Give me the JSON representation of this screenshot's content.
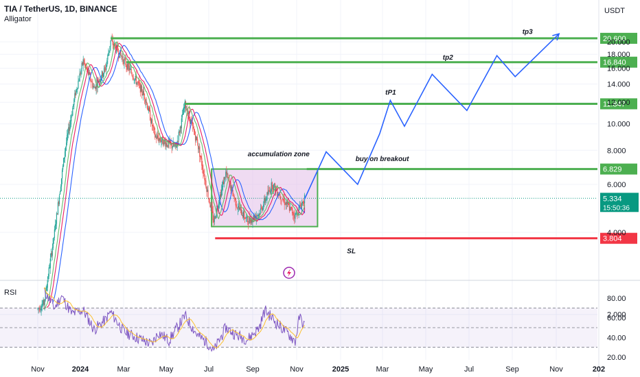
{
  "header": {
    "symbol": "TIA / TetherUS, 1D, BINANCE",
    "indicator": "Alligator",
    "currency": "USDT"
  },
  "colors": {
    "green_line": "#4caf50",
    "red_line": "#f23645",
    "projection": "#2962ff",
    "candle_up": "#26a69a",
    "candle_down": "#ef5350",
    "jaw": "#2962ff",
    "teeth": "#e91e63",
    "lips": "#66bb6a",
    "rsi_line": "#7e57c2",
    "rsi_ma": "#fbc02d",
    "zone_fill": "#e1bee7",
    "last_price": "#089981"
  },
  "chart_data": [
    {
      "type": "candlestick",
      "title": "TIA / TetherUS, 1D, BINANCE",
      "indicator": "Alligator",
      "y_scale": "log",
      "ylim": [
        1.6,
        24
      ],
      "y_ticks": [
        "2.000",
        "4.000",
        "6.000",
        "8.000",
        "10.000",
        "12.000",
        "14.000",
        "16.000",
        "18.000",
        "20.000"
      ],
      "x_ticks": [
        "Nov",
        "2024",
        "Mar",
        "May",
        "Jul",
        "Sep",
        "Nov",
        "2025",
        "Mar",
        "May",
        "Jul",
        "Sep",
        "Nov",
        "202"
      ],
      "price_path": [
        {
          "date": "2023-11-01",
          "price": 2.1
        },
        {
          "date": "2023-11-10",
          "price": 2.2
        },
        {
          "date": "2023-11-25",
          "price": 4.0
        },
        {
          "date": "2023-12-10",
          "price": 8.0
        },
        {
          "date": "2023-12-25",
          "price": 13.0
        },
        {
          "date": "2024-01-05",
          "price": 17.0
        },
        {
          "date": "2024-01-20",
          "price": 13.5
        },
        {
          "date": "2024-02-05",
          "price": 16.0
        },
        {
          "date": "2024-02-12",
          "price": 20.2
        },
        {
          "date": "2024-02-25",
          "price": 18.0
        },
        {
          "date": "2024-03-15",
          "price": 15.0
        },
        {
          "date": "2024-04-01",
          "price": 12.5
        },
        {
          "date": "2024-04-15",
          "price": 9.0
        },
        {
          "date": "2024-05-01",
          "price": 8.5
        },
        {
          "date": "2024-05-15",
          "price": 8.2
        },
        {
          "date": "2024-05-28",
          "price": 11.8
        },
        {
          "date": "2024-06-15",
          "price": 8.5
        },
        {
          "date": "2024-06-30",
          "price": 5.5
        },
        {
          "date": "2024-07-08",
          "price": 4.4
        },
        {
          "date": "2024-07-25",
          "price": 6.6
        },
        {
          "date": "2024-08-10",
          "price": 5.0
        },
        {
          "date": "2024-08-25",
          "price": 4.4
        },
        {
          "date": "2024-09-10",
          "price": 4.7
        },
        {
          "date": "2024-09-28",
          "price": 6.0
        },
        {
          "date": "2024-10-15",
          "price": 5.2
        },
        {
          "date": "2024-10-30",
          "price": 4.6
        },
        {
          "date": "2024-11-12",
          "price": 5.33
        }
      ],
      "price_levels": [
        {
          "label": "20.600",
          "value": 20.6,
          "color": "green",
          "from": "2024-02-12"
        },
        {
          "label": "16.840",
          "value": 16.84,
          "color": "green",
          "from": "2024-03-05"
        },
        {
          "label": "11.847",
          "value": 11.847,
          "color": "green",
          "from": "2024-05-28"
        },
        {
          "label": "6.829",
          "value": 6.829,
          "color": "green",
          "from": "2024-11-15"
        },
        {
          "label": "3.804",
          "value": 3.804,
          "color": "red",
          "from": "2024-07-10"
        }
      ],
      "last_price": {
        "label": "5.334",
        "value": 5.334,
        "countdown": "15:50:36"
      },
      "accumulation_zone": {
        "label": "accumulation zone",
        "from": "2024-07-05",
        "to": "2024-11-30",
        "top": 6.829,
        "bottom": 4.2
      },
      "projection_path": [
        {
          "date": "2024-11-12",
          "price": 5.3
        },
        {
          "date": "2024-12-12",
          "price": 7.9
        },
        {
          "date": "2025-01-25",
          "price": 6.0
        },
        {
          "date": "2025-02-25",
          "price": 9.2
        },
        {
          "date": "2025-03-12",
          "price": 12.2
        },
        {
          "date": "2025-04-01",
          "price": 9.8
        },
        {
          "date": "2025-05-10",
          "price": 15.2
        },
        {
          "date": "2025-06-28",
          "price": 11.2
        },
        {
          "date": "2025-08-10",
          "price": 17.8
        },
        {
          "date": "2025-09-05",
          "price": 14.9
        },
        {
          "date": "2025-11-05",
          "price": 21.4
        }
      ],
      "annotations": [
        {
          "text": "tp3",
          "date": "2025-09-15",
          "price": 21.4
        },
        {
          "text": "tp2",
          "date": "2025-05-25",
          "price": 17.2
        },
        {
          "text": "tP1",
          "date": "2025-03-05",
          "price": 12.8
        },
        {
          "text": "buy on breakout",
          "date": "2025-01-22",
          "price": 7.3
        },
        {
          "text": "accumulation zone",
          "date": "2024-08-25",
          "price": 7.6
        },
        {
          "text": "SL",
          "date": "2025-01-10",
          "price": 3.35
        }
      ]
    },
    {
      "type": "line",
      "title": "RSI",
      "ylim": [
        15,
        92
      ],
      "y_ticks": [
        "20.00",
        "40.00",
        "60.00",
        "80.00"
      ],
      "bands": [
        30,
        50,
        70
      ],
      "rsi_path": [
        {
          "date": "2023-11-10",
          "value": 88
        },
        {
          "date": "2023-11-25",
          "value": 70
        },
        {
          "date": "2023-12-05",
          "value": 82
        },
        {
          "date": "2023-12-20",
          "value": 64
        },
        {
          "date": "2024-01-05",
          "value": 68
        },
        {
          "date": "2024-01-20",
          "value": 48
        },
        {
          "date": "2024-02-05",
          "value": 58
        },
        {
          "date": "2024-02-12",
          "value": 66
        },
        {
          "date": "2024-03-01",
          "value": 46
        },
        {
          "date": "2024-03-20",
          "value": 40
        },
        {
          "date": "2024-04-10",
          "value": 33
        },
        {
          "date": "2024-04-20",
          "value": 45
        },
        {
          "date": "2024-05-05",
          "value": 37
        },
        {
          "date": "2024-05-28",
          "value": 62
        },
        {
          "date": "2024-06-15",
          "value": 42
        },
        {
          "date": "2024-06-30",
          "value": 34
        },
        {
          "date": "2024-07-08",
          "value": 26
        },
        {
          "date": "2024-07-25",
          "value": 50
        },
        {
          "date": "2024-08-10",
          "value": 42
        },
        {
          "date": "2024-08-25",
          "value": 38
        },
        {
          "date": "2024-09-10",
          "value": 50
        },
        {
          "date": "2024-09-18",
          "value": 68
        },
        {
          "date": "2024-10-05",
          "value": 54
        },
        {
          "date": "2024-10-20",
          "value": 44
        },
        {
          "date": "2024-10-30",
          "value": 36
        },
        {
          "date": "2024-11-05",
          "value": 61
        },
        {
          "date": "2024-11-12",
          "value": 52
        }
      ]
    }
  ]
}
